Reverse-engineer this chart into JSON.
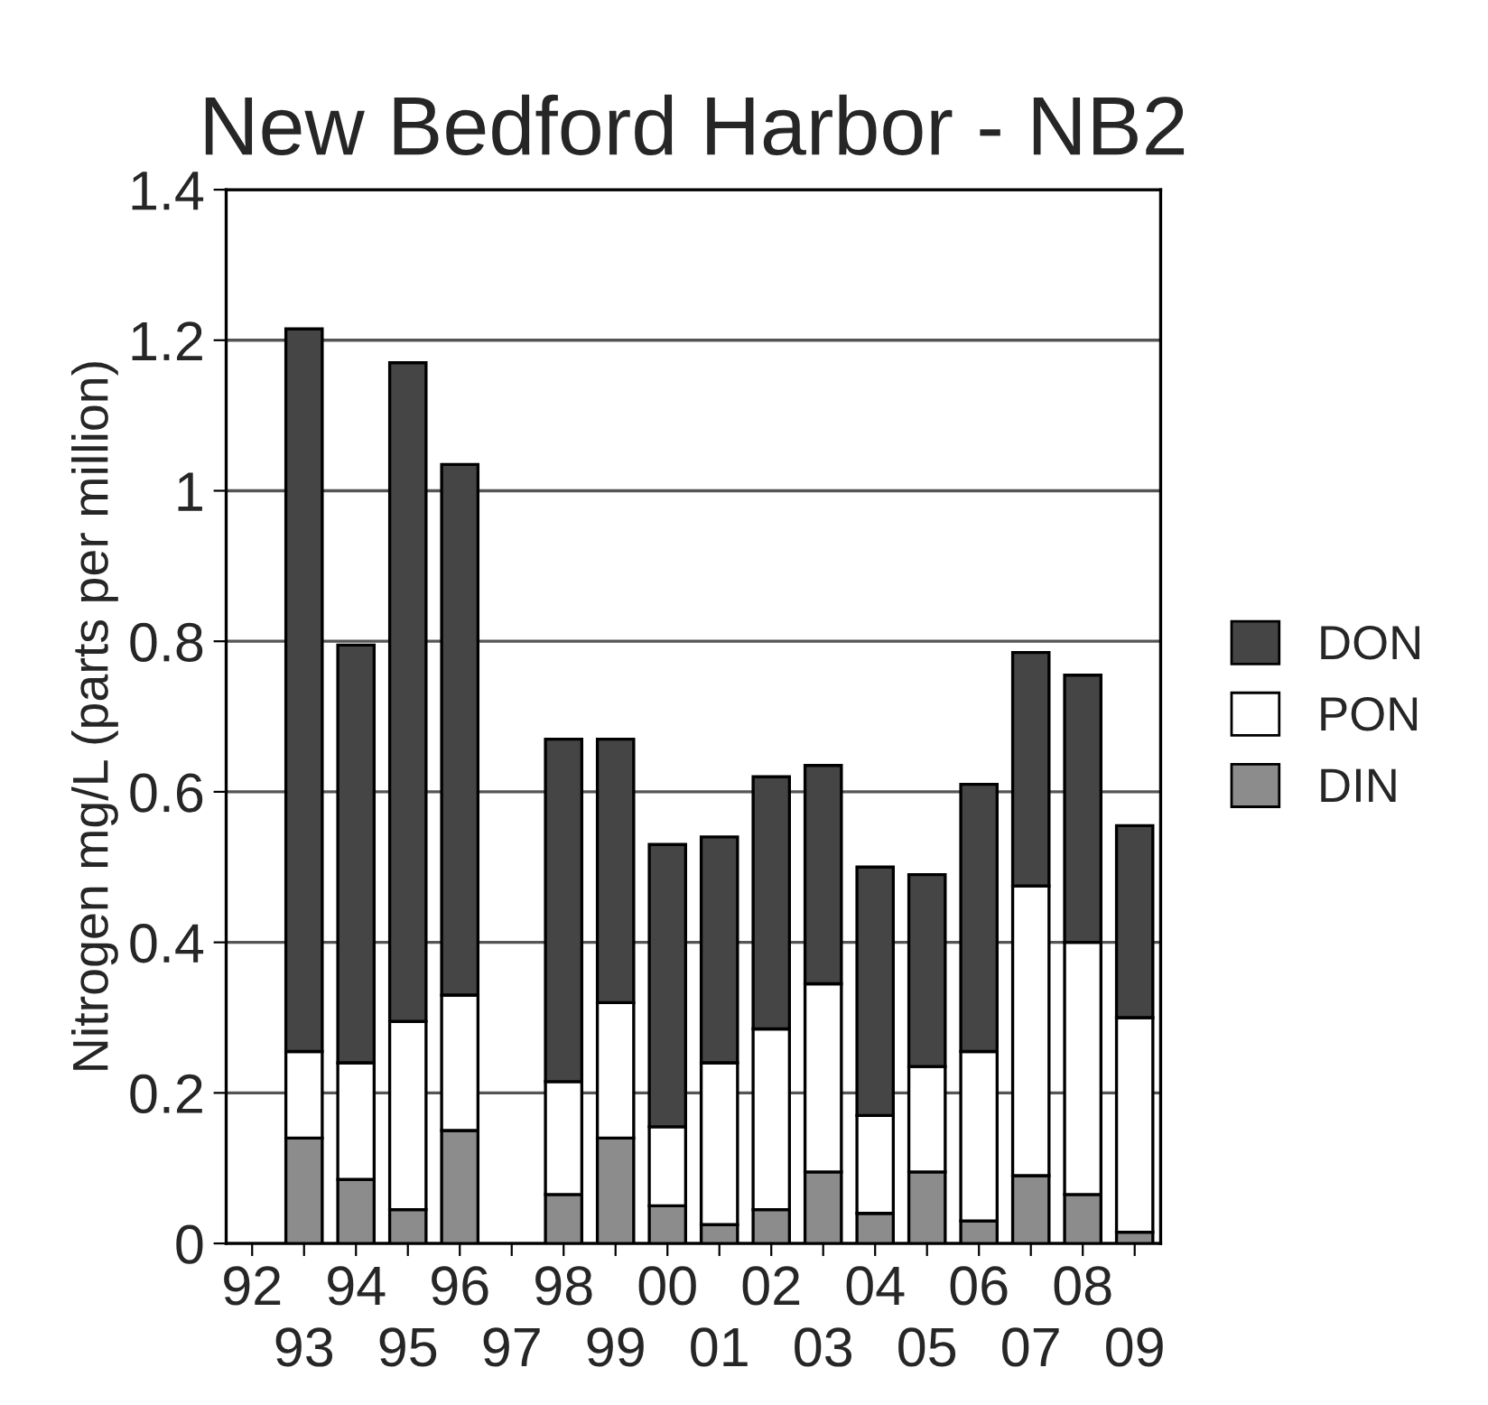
{
  "chart_data": {
    "type": "bar",
    "title": "New Bedford Harbor - NB2",
    "ylabel": "Nitrogen mg/L (parts per million)",
    "categories": [
      "92",
      "93",
      "94",
      "95",
      "96",
      "97",
      "98",
      "99",
      "00",
      "01",
      "02",
      "03",
      "04",
      "05",
      "06",
      "07",
      "08",
      "09"
    ],
    "stacked": true,
    "series": [
      {
        "name": "DIN",
        "color": "#8c8c8c",
        "values": [
          null,
          0.14,
          0.085,
          0.045,
          0.15,
          null,
          0.065,
          0.14,
          0.05,
          0.025,
          0.045,
          0.095,
          0.04,
          0.095,
          0.03,
          0.09,
          0.065,
          0.015
        ]
      },
      {
        "name": "PON",
        "color": "#ffffff",
        "values": [
          null,
          0.115,
          0.155,
          0.25,
          0.18,
          null,
          0.15,
          0.18,
          0.105,
          0.215,
          0.24,
          0.25,
          0.13,
          0.14,
          0.225,
          0.385,
          0.335,
          0.285
        ]
      },
      {
        "name": "DON",
        "color": "#454545",
        "values": [
          null,
          0.96,
          0.555,
          0.875,
          0.705,
          null,
          0.455,
          0.35,
          0.375,
          0.3,
          0.335,
          0.29,
          0.33,
          0.255,
          0.355,
          0.31,
          0.355,
          0.255
        ]
      }
    ],
    "ylim": [
      0,
      1.4
    ],
    "yticks": [
      0,
      0.2,
      0.4,
      0.6,
      0.8,
      1,
      1.2,
      1.4
    ],
    "grid": "y",
    "legend": "right"
  }
}
